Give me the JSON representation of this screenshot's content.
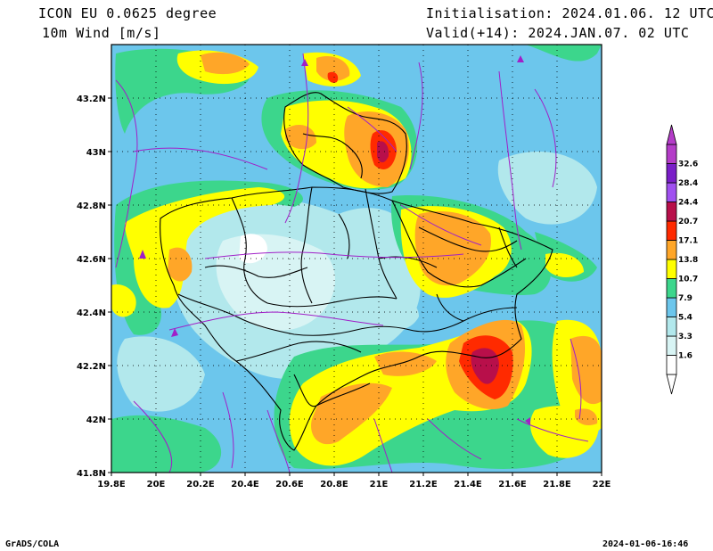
{
  "header": {
    "model": "ICON EU 0.0625 degree",
    "variable": "10m Wind [m/s]",
    "init": "Initialisation: 2024.01.06. 12 UTC",
    "valid": "Valid(+14): 2024.JAN.07. 02 UTC"
  },
  "footer": {
    "left": "GrADS/COLA",
    "right": "2024-01-06-16:46"
  },
  "map": {
    "lon_range": [
      19.8,
      22.0
    ],
    "lat_range": [
      41.8,
      43.4
    ],
    "x_ticks": [
      "19.8E",
      "20E",
      "20.2E",
      "20.4E",
      "20.6E",
      "20.8E",
      "21E",
      "21.2E",
      "21.4E",
      "21.6E",
      "21.8E",
      "22E"
    ],
    "y_ticks": [
      "41.8N",
      "42N",
      "42.2N",
      "42.4N",
      "42.6N",
      "42.8N",
      "43N",
      "43.2N"
    ],
    "grid": "dotted"
  },
  "colorbar": {
    "levels": [
      "1.6",
      "3.3",
      "5.4",
      "7.9",
      "10.7",
      "13.8",
      "17.1",
      "20.7",
      "24.4",
      "28.4",
      "32.6"
    ],
    "colors": [
      "#ffffff",
      "#d8f4f4",
      "#b2e8ec",
      "#6cc6ec",
      "#3cd68c",
      "#ffff00",
      "#ffa628",
      "#ff2a00",
      "#b80f4a",
      "#a050f0",
      "#7a1ec8",
      "#b43cc8"
    ]
  }
}
